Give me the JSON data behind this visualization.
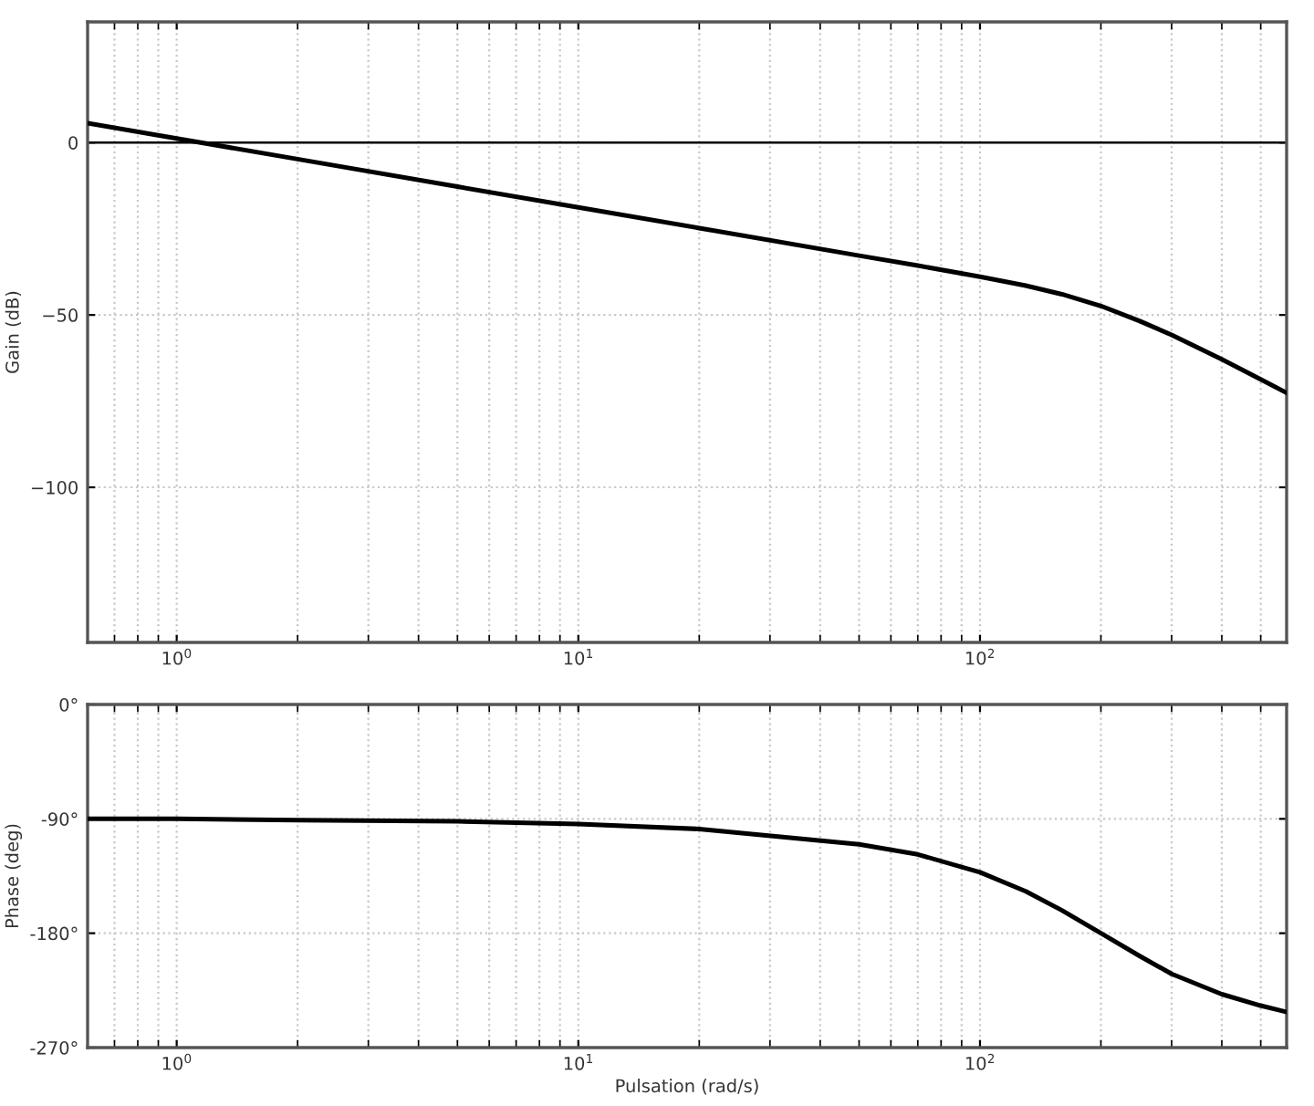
{
  "chart_data": [
    {
      "type": "line",
      "ylabel": "Gain (dB)",
      "log": "x",
      "grid": true,
      "marker": "none",
      "line_style": "solid",
      "xlim": [
        0.6,
        580
      ],
      "xticks": [
        {
          "value": 1,
          "label": "10$^{0}$"
        },
        {
          "value": 10,
          "label": "10$^{1}$"
        },
        {
          "value": 100,
          "label": "10$^{2}$"
        }
      ],
      "ylim": [
        -145,
        35
      ],
      "yticks": [
        0,
        -50,
        -100
      ],
      "ref_lines": [
        {
          "axis": "y",
          "value": 0,
          "color": "#000000",
          "line_style": "solid"
        }
      ],
      "series": [
        {
          "color": "#000000",
          "x": [
            0.6,
            1,
            2,
            5,
            10,
            20,
            50,
            70,
            100,
            130,
            160,
            200,
            250,
            300,
            400,
            500,
            580
          ],
          "values": [
            5.6,
            1.2,
            -4.8,
            -12.8,
            -18.8,
            -24.8,
            -32.8,
            -35.7,
            -38.9,
            -41.5,
            -44.0,
            -47.4,
            -51.8,
            -55.8,
            -62.9,
            -68.7,
            -72.6
          ]
        }
      ]
    },
    {
      "type": "line",
      "xlabel": "Pulsation (rad/s)",
      "ylabel": "Phase (deg)",
      "log": "x",
      "grid": true,
      "marker": "none",
      "line_style": "solid",
      "xlim": [
        0.6,
        580
      ],
      "xticks": [
        {
          "value": 1,
          "label": "10$^{0}$"
        },
        {
          "value": 10,
          "label": "10$^{1}$"
        },
        {
          "value": 100,
          "label": "10$^{2}$"
        }
      ],
      "ylim": [
        -270,
        0
      ],
      "yticks": [
        {
          "value": 0,
          "label": "0°"
        },
        {
          "value": -90,
          "label": "-90°"
        },
        {
          "value": -180,
          "label": "-180°"
        },
        {
          "value": -270,
          "label": "-270°"
        }
      ],
      "series": [
        {
          "color": "#000000",
          "x": [
            0.6,
            1,
            2,
            5,
            10,
            20,
            50,
            70,
            100,
            130,
            160,
            200,
            250,
            300,
            400,
            500,
            580
          ],
          "values": [
            -90,
            -90,
            -91,
            -92,
            -94,
            -98,
            -110,
            -118,
            -132,
            -147,
            -162,
            -180,
            -198,
            -212,
            -228,
            -237,
            -242
          ]
        }
      ]
    }
  ]
}
